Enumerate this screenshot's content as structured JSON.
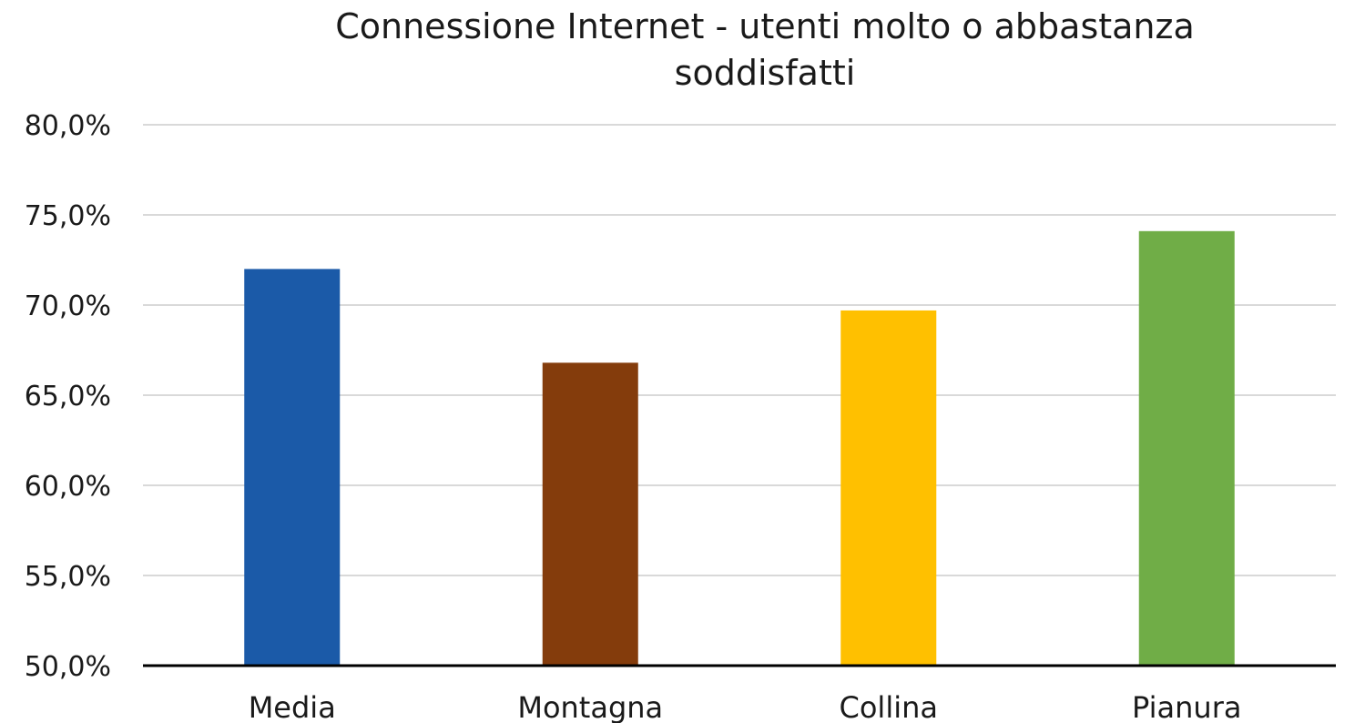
{
  "chart_data": {
    "type": "bar",
    "title_lines": [
      "Connessione Internet - utenti molto o abbastanza",
      "soddisfatti"
    ],
    "categories": [
      "Media",
      "Montagna",
      "Collina",
      "Pianura"
    ],
    "values": [
      72.0,
      66.8,
      69.7,
      74.1
    ],
    "colors": [
      "#1b5aa8",
      "#843c0c",
      "#ffc000",
      "#70ad47"
    ],
    "ylim": [
      50,
      80
    ],
    "y_ticks": [
      50,
      55,
      60,
      65,
      70,
      75,
      80
    ],
    "y_tick_labels": [
      "50,0%",
      "55,0%",
      "60,0%",
      "65,0%",
      "70,0%",
      "75,0%",
      "80,0%"
    ],
    "grid": true,
    "legend": "none"
  }
}
